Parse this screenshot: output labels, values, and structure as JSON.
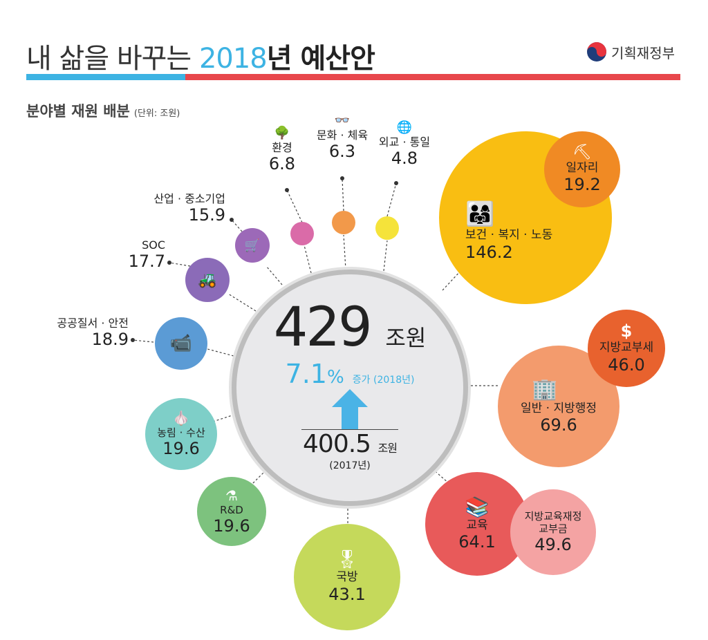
{
  "header": {
    "title_pre": "내 삶을 바꾸는 ",
    "title_year": "2018",
    "title_post": "년 예산안",
    "ministry": "기획재정부"
  },
  "section": {
    "title": "분야별 재원 배분",
    "unit": "(단위: 조원)"
  },
  "center": {
    "total": "429",
    "total_unit": "조원",
    "rate": "7.1",
    "rate_unit": "%",
    "rate_label": "증가 (2018년)",
    "prev": "400.5",
    "prev_unit": "조원",
    "prev_year": "(2017년)"
  },
  "sectors": [
    {
      "label": "보건 · 복지 · 노동",
      "value": "146.2",
      "color": "#F9BE12"
    },
    {
      "label": "일자리",
      "value": "19.2",
      "color": "#F08A24"
    },
    {
      "label": "일반 · 지방행정",
      "value": "69.6",
      "color": "#F39B6D"
    },
    {
      "label": "지방교부세",
      "value": "46.0",
      "color": "#E8622E"
    },
    {
      "label": "교육",
      "value": "64.1",
      "color": "#E85A5A"
    },
    {
      "label": "지방교육재정 교부금",
      "value": "49.6",
      "color": "#F4A3A3"
    },
    {
      "label": "국방",
      "value": "43.1",
      "color": "#C5D95B"
    },
    {
      "label": "R&D",
      "value": "19.6",
      "color": "#7DC27E"
    },
    {
      "label": "농림 · 수산",
      "value": "19.6",
      "color": "#7ECFC8"
    },
    {
      "label": "공공질서 · 안전",
      "value": "18.9",
      "color": "#5B9BD5"
    },
    {
      "label": "SOC",
      "value": "17.7",
      "color": "#8B6BB8"
    },
    {
      "label": "산업 · 중소기업",
      "value": "15.9",
      "color": "#9C69B8"
    },
    {
      "label": "환경",
      "value": "6.8",
      "color": "#DA6BA8"
    },
    {
      "label": "문화 · 체육",
      "value": "6.3",
      "color": "#F2994A"
    },
    {
      "label": "외교 · 통일",
      "value": "4.8",
      "color": "#F5E33A"
    }
  ]
}
